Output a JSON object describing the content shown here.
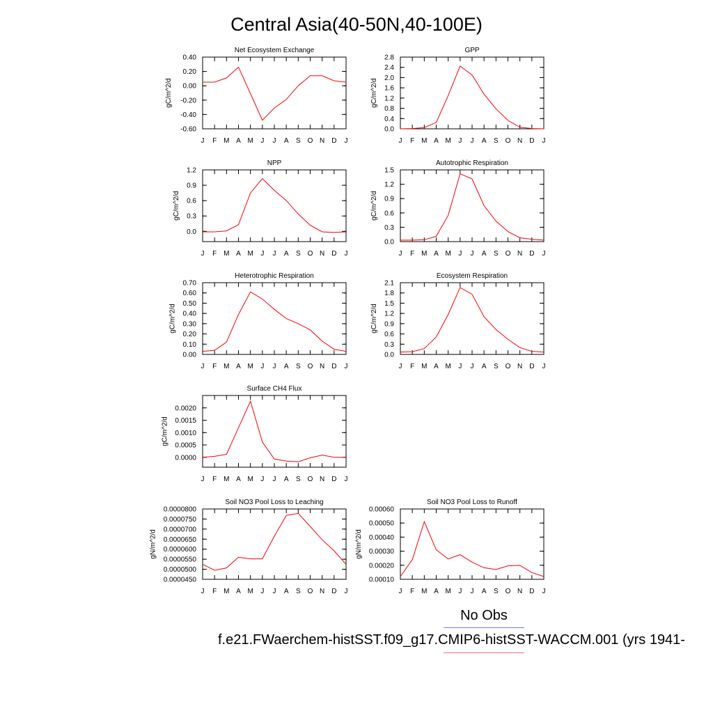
{
  "title": "Central Asia(40-50N,40-100E)",
  "legend": {
    "obs_label": "No Obs",
    "obs_color": "#6b7fe6",
    "case_label": "f.e21.FWaerchem-histSST.f09_g17.CMIP6-histSST-WACCM.001 (yrs 1941-",
    "case_color": "#f07070"
  },
  "chart_data": [
    {
      "type": "line",
      "title": "Net Ecosystem Exchange",
      "ylabel": "gC/m^2/d",
      "x": [
        "J",
        "F",
        "M",
        "A",
        "M",
        "J",
        "J",
        "A",
        "S",
        "O",
        "N",
        "D",
        "J"
      ],
      "ylim": [
        -0.6,
        0.4
      ],
      "yticks": [
        "0.40",
        "0.20",
        "0.00",
        "-0.20",
        "-0.40",
        "-0.60"
      ],
      "series": [
        {
          "color": "#ff0000",
          "values": [
            0.05,
            0.05,
            0.11,
            0.26,
            -0.11,
            -0.48,
            -0.31,
            -0.19,
            0.0,
            0.14,
            0.14,
            0.07,
            0.05
          ]
        }
      ]
    },
    {
      "type": "line",
      "title": "GPP",
      "ylabel": "gC/m^2/d",
      "x": [
        "J",
        "F",
        "M",
        "A",
        "M",
        "J",
        "J",
        "A",
        "S",
        "O",
        "N",
        "D",
        "J"
      ],
      "ylim": [
        0,
        2.8
      ],
      "yticks": [
        "2.8",
        "2.4",
        "2.0",
        "1.6",
        "1.2",
        "0.8",
        "0.4",
        "0.0"
      ],
      "series": [
        {
          "color": "#ff0000",
          "values": [
            0.0,
            0.01,
            0.05,
            0.25,
            1.3,
            2.45,
            2.1,
            1.35,
            0.78,
            0.33,
            0.06,
            0.01,
            0.0
          ]
        }
      ]
    },
    {
      "type": "line",
      "title": "NPP",
      "ylabel": "gC/m^2/d",
      "x": [
        "J",
        "F",
        "M",
        "A",
        "M",
        "J",
        "J",
        "A",
        "S",
        "O",
        "N",
        "D",
        "J"
      ],
      "ylim": [
        -0.2,
        1.2
      ],
      "yticks": [
        "1.2",
        "0.9",
        "0.6",
        "0.3",
        "0.0"
      ],
      "series": [
        {
          "color": "#ff0000",
          "values": [
            -0.01,
            -0.01,
            0.01,
            0.13,
            0.75,
            1.03,
            0.8,
            0.6,
            0.34,
            0.12,
            -0.01,
            -0.02,
            -0.01
          ]
        }
      ]
    },
    {
      "type": "line",
      "title": "Autotrophic Respiration",
      "ylabel": "gC/m^2/d",
      "x": [
        "J",
        "F",
        "M",
        "A",
        "M",
        "J",
        "J",
        "A",
        "S",
        "O",
        "N",
        "D",
        "J"
      ],
      "ylim": [
        0,
        1.5
      ],
      "yticks": [
        "1.5",
        "1.2",
        "0.9",
        "0.6",
        "0.3",
        "0.0"
      ],
      "series": [
        {
          "color": "#ff0000",
          "values": [
            0.03,
            0.03,
            0.04,
            0.11,
            0.55,
            1.42,
            1.31,
            0.75,
            0.43,
            0.21,
            0.08,
            0.05,
            0.03
          ]
        }
      ]
    },
    {
      "type": "line",
      "title": "Heterotrophic Respiration",
      "ylabel": "gC/m^2/d",
      "x": [
        "J",
        "F",
        "M",
        "A",
        "M",
        "J",
        "J",
        "A",
        "S",
        "O",
        "N",
        "D",
        "J"
      ],
      "ylim": [
        0,
        0.7
      ],
      "yticks": [
        "0.70",
        "0.60",
        "0.50",
        "0.40",
        "0.30",
        "0.20",
        "0.10",
        "0.00"
      ],
      "series": [
        {
          "color": "#ff0000",
          "values": [
            0.03,
            0.04,
            0.12,
            0.39,
            0.61,
            0.54,
            0.44,
            0.35,
            0.3,
            0.24,
            0.13,
            0.05,
            0.03
          ]
        }
      ]
    },
    {
      "type": "line",
      "title": "Ecosystem Respiration",
      "ylabel": "gC/m^2/d",
      "x": [
        "J",
        "F",
        "M",
        "A",
        "M",
        "J",
        "J",
        "A",
        "S",
        "O",
        "N",
        "D",
        "J"
      ],
      "ylim": [
        0,
        2.1
      ],
      "yticks": [
        "2.1",
        "1.8",
        "1.5",
        "1.2",
        "0.9",
        "0.6",
        "0.3",
        "0.0"
      ],
      "series": [
        {
          "color": "#ff0000",
          "values": [
            0.07,
            0.08,
            0.17,
            0.51,
            1.17,
            1.96,
            1.76,
            1.1,
            0.73,
            0.44,
            0.2,
            0.09,
            0.07
          ]
        }
      ]
    },
    {
      "type": "line",
      "title": "Surface CH4 Flux",
      "ylabel": "gC/m^2/d",
      "x": [
        "J",
        "F",
        "M",
        "A",
        "M",
        "J",
        "J",
        "A",
        "S",
        "O",
        "N",
        "D",
        "J"
      ],
      "ylim": [
        -0.0004,
        0.0025
      ],
      "yticks": [
        "0.0020",
        "0.0015",
        "0.0010",
        "0.0005",
        "0.0000"
      ],
      "series": [
        {
          "color": "#ff0000",
          "values": [
            0.0,
            4e-05,
            0.00012,
            0.0012,
            0.00227,
            0.00062,
            -7e-05,
            -0.00015,
            -0.00018,
            -2e-05,
            9e-05,
            0.0,
            0.0
          ]
        }
      ]
    },
    {
      "type": "line",
      "title": "Soil NO3 Pool Loss to Leaching",
      "ylabel": "gN/m^2/d",
      "x": [
        "J",
        "F",
        "M",
        "A",
        "M",
        "J",
        "J",
        "A",
        "S",
        "O",
        "N",
        "D",
        "J"
      ],
      "ylim": [
        4.5e-05,
        8e-05
      ],
      "yticks": [
        "0.0000800",
        "0.0000750",
        "0.0000700",
        "0.0000650",
        "0.0000600",
        "0.0000550",
        "0.0000500",
        "0.0000450"
      ],
      "series": [
        {
          "color": "#ff0000",
          "values": [
            5.25e-05,
            4.95e-05,
            5.07e-05,
            5.6e-05,
            5.52e-05,
            5.52e-05,
            6.65e-05,
            7.68e-05,
            7.78e-05,
            7.13e-05,
            6.47e-05,
            5.92e-05,
            5.25e-05
          ]
        }
      ]
    },
    {
      "type": "line",
      "title": "Soil NO3 Pool Loss to Runoff",
      "ylabel": "gN/m^2/d",
      "x": [
        "J",
        "F",
        "M",
        "A",
        "M",
        "J",
        "J",
        "A",
        "S",
        "O",
        "N",
        "D",
        "J"
      ],
      "ylim": [
        0.0001,
        0.0006
      ],
      "yticks": [
        "0.00060",
        "0.00050",
        "0.00040",
        "0.00030",
        "0.00020",
        "0.00010"
      ],
      "series": [
        {
          "color": "#ff0000",
          "values": [
            0.00012,
            0.00024,
            0.00051,
            0.00031,
            0.000245,
            0.000275,
            0.000222,
            0.000182,
            0.00017,
            0.000196,
            0.000199,
            0.000148,
            0.00012
          ]
        }
      ]
    }
  ]
}
